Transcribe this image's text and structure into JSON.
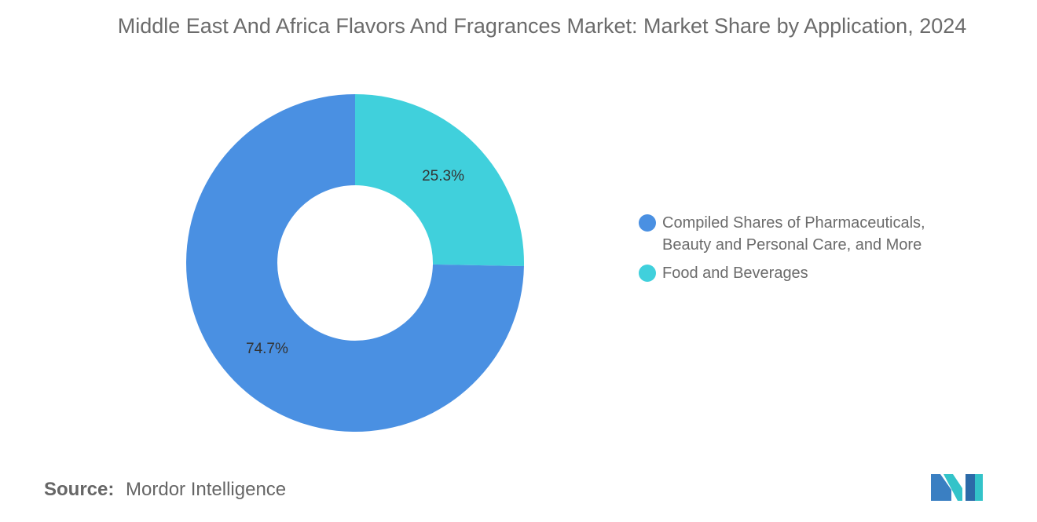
{
  "header": {
    "title": "Middle East And Africa Flavors And Fragrances Market: Market Share by Application, 2024"
  },
  "chart_data": {
    "type": "pie",
    "donut": true,
    "title": "Middle East And Africa Flavors And Fragrances Market: Market Share by Application, 2024",
    "slices": [
      {
        "label": "Food and Beverages",
        "value": 25.3,
        "display": "25.3%",
        "color": "#40d0dc"
      },
      {
        "label": "Compiled Shares of Pharmaceuticals, Beauty and Personal Care, and More",
        "value": 74.7,
        "display": "74.7%",
        "color": "#4a90e2"
      }
    ],
    "legend_position": "right"
  },
  "legend": {
    "items": [
      {
        "label": "Compiled Shares of Pharmaceuticals, Beauty and Personal Care, and More",
        "color": "#4a90e2"
      },
      {
        "label": "Food and Beverages",
        "color": "#40d0dc"
      }
    ]
  },
  "footer": {
    "source_label": "Source:",
    "source_value": "Mordor Intelligence"
  },
  "logo": {
    "icon": "mordor-intelligence-logo-icon"
  }
}
